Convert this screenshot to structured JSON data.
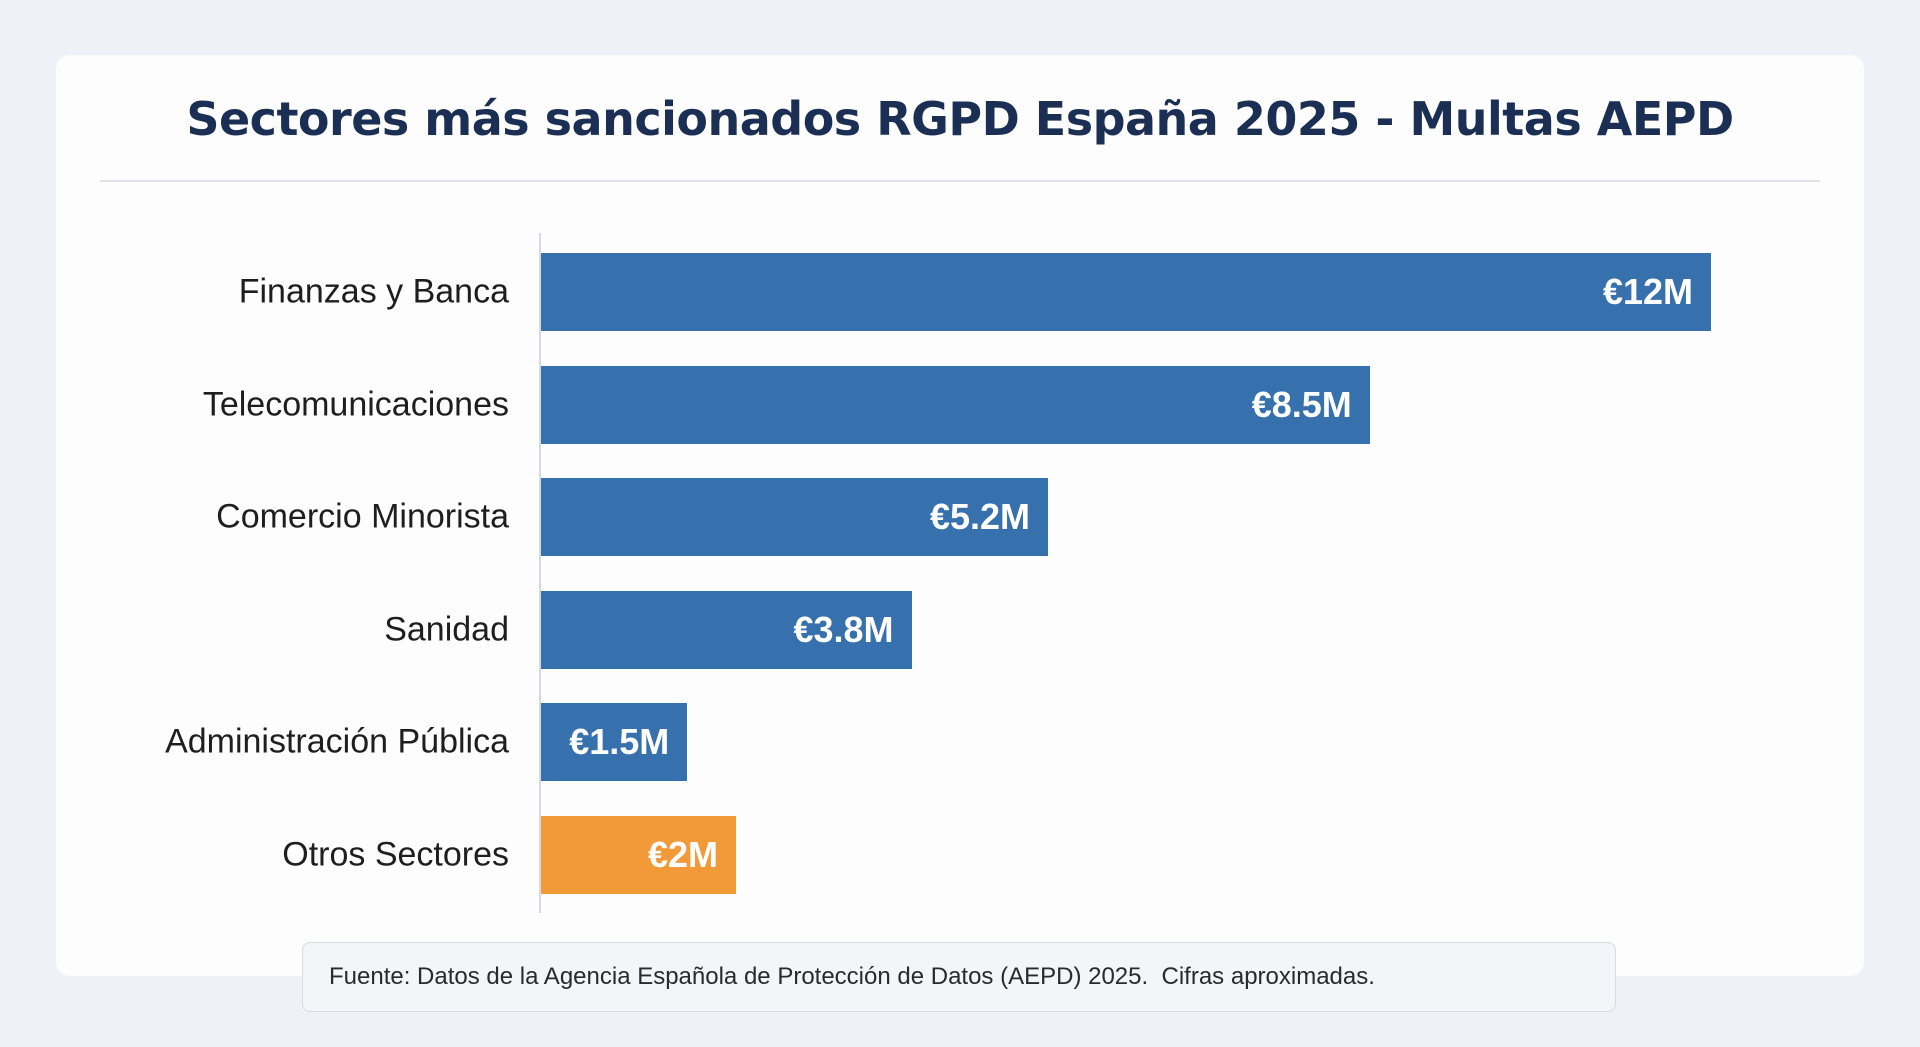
{
  "chart_data": {
    "type": "bar",
    "orientation": "horizontal",
    "title": "Sectores más sancionados RGPD España 2025 - Multas AEPD",
    "categories": [
      "Finanzas y Banca",
      "Telecomunicaciones",
      "Comercio Minorista",
      "Sanidad",
      "Administración Pública",
      "Otros Sectores"
    ],
    "values": [
      12,
      8.5,
      5.2,
      3.8,
      1.5,
      2
    ],
    "value_labels": [
      "€12M",
      "€8.5M",
      "€5.2M",
      "€3.8M",
      "€1.5M",
      "€2M"
    ],
    "unit": "M€",
    "colors": [
      "#3671ad",
      "#3671ad",
      "#3671ad",
      "#3671ad",
      "#3671ad",
      "#f39a38"
    ],
    "xlim": [
      0,
      12
    ],
    "grid": false,
    "legend": "none",
    "footnote": "Fuente: Datos de la Agencia Española de Protección de Datos (AEPD) 2025.  Cifras aproximadas."
  }
}
